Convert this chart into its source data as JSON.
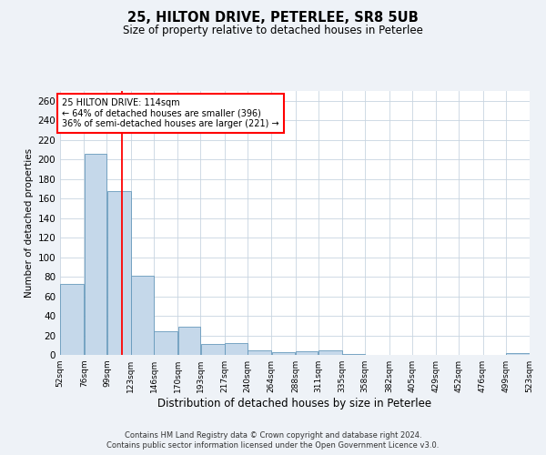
{
  "title": "25, HILTON DRIVE, PETERLEE, SR8 5UB",
  "subtitle": "Size of property relative to detached houses in Peterlee",
  "xlabel": "Distribution of detached houses by size in Peterlee",
  "ylabel": "Number of detached properties",
  "footer_line1": "Contains HM Land Registry data © Crown copyright and database right 2024.",
  "footer_line2": "Contains public sector information licensed under the Open Government Licence v3.0.",
  "annotation_line1": "25 HILTON DRIVE: 114sqm",
  "annotation_line2": "← 64% of detached houses are smaller (396)",
  "annotation_line3": "36% of semi-detached houses are larger (221) →",
  "bar_left_edges": [
    52,
    76,
    99,
    123,
    146,
    170,
    193,
    217,
    240,
    264,
    288,
    311,
    335,
    358,
    382,
    405,
    429,
    452,
    476,
    499
  ],
  "bar_widths": [
    24,
    23,
    24,
    23,
    24,
    23,
    24,
    23,
    24,
    24,
    23,
    24,
    23,
    24,
    23,
    24,
    23,
    24,
    23,
    24
  ],
  "bar_heights": [
    73,
    206,
    168,
    81,
    24,
    29,
    11,
    12,
    5,
    3,
    4,
    5,
    1,
    0,
    0,
    0,
    0,
    0,
    0,
    2
  ],
  "bar_color": "#c5d8ea",
  "bar_edge_color": "#6699bb",
  "red_line_x": 114,
  "ylim": [
    0,
    270
  ],
  "yticks": [
    0,
    20,
    40,
    60,
    80,
    100,
    120,
    140,
    160,
    180,
    200,
    220,
    240,
    260
  ],
  "xlim": [
    52,
    523
  ],
  "x_tick_labels": [
    "52sqm",
    "76sqm",
    "99sqm",
    "123sqm",
    "146sqm",
    "170sqm",
    "193sqm",
    "217sqm",
    "240sqm",
    "264sqm",
    "288sqm",
    "311sqm",
    "335sqm",
    "358sqm",
    "382sqm",
    "405sqm",
    "429sqm",
    "452sqm",
    "476sqm",
    "499sqm",
    "523sqm"
  ],
  "x_tick_positions": [
    52,
    76,
    99,
    123,
    146,
    170,
    193,
    217,
    240,
    264,
    288,
    311,
    335,
    358,
    382,
    405,
    429,
    452,
    476,
    499,
    523
  ],
  "bg_color": "#eef2f7",
  "plot_bg_color": "#ffffff",
  "grid_color": "#c8d4e0",
  "title_fontsize": 10.5,
  "subtitle_fontsize": 8.5,
  "xlabel_fontsize": 8.5,
  "ylabel_fontsize": 7.5,
  "ytick_fontsize": 7.5,
  "xtick_fontsize": 6.5,
  "footer_fontsize": 6.0
}
